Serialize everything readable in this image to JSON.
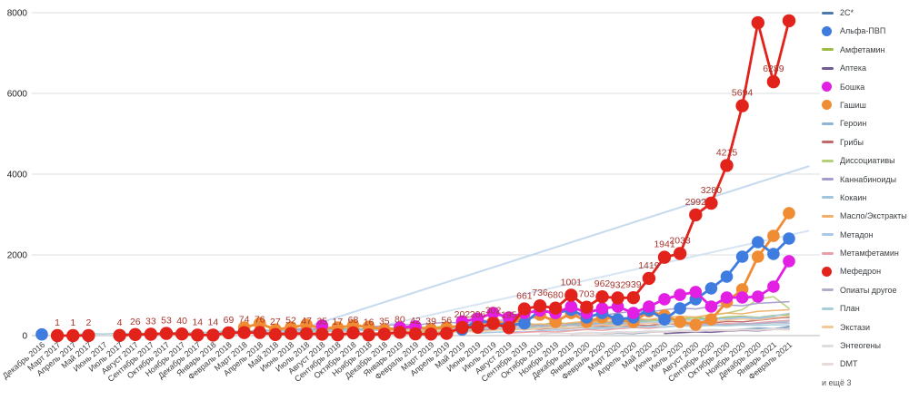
{
  "legend": {
    "more_label": "и ещё 3",
    "position": "right"
  },
  "chart_data": {
    "type": "line",
    "title": "",
    "xlabel": "",
    "ylabel": "",
    "ylim": [
      0,
      8000
    ],
    "yticks": [
      0,
      2000,
      4000,
      6000,
      8000
    ],
    "grid": true,
    "legend_position": "right",
    "label_color": "#a8372e",
    "categories": [
      "Декабрь 2016",
      "Март 2017",
      "Апрель 2017",
      "Май 2017",
      "Июнь 2017",
      "Июль 2017",
      "Август 2017",
      "Сентябрь 2017",
      "Октябрь 2017",
      "Ноябрь 2017",
      "Декабрь 2017",
      "Январь 2018",
      "Февраль 2018",
      "Март 2018",
      "Апрель 2018",
      "Май 2018",
      "Июнь 2018",
      "Июль 2018",
      "Август 2018",
      "Сентябрь 2018",
      "Октябрь 2018",
      "Ноябрь 2018",
      "Декабрь 2018",
      "Январь 2019",
      "Февраль 2019",
      "Март 2019",
      "Апрель 2019",
      "Май 2019",
      "Июнь 2019",
      "Июль 2019",
      "Август 2019",
      "Сентябрь 2019",
      "Октябрь 2019",
      "Ноябрь 2019",
      "Декабрь 2019",
      "Январь 2020",
      "Февраль 2020",
      "Март 2020",
      "Апрель 2020",
      "Май 2020",
      "Июнь 2020",
      "Июль 2020",
      "Август 2020",
      "Сентябрь 2020",
      "Октябрь 2020",
      "Ноябрь 2020",
      "Декабрь 2020",
      "Январь 2021",
      "Февраль 2021"
    ],
    "series": [
      {
        "name": "2C*",
        "color": "#4a7aab",
        "marker": "line",
        "zorder": 1,
        "start": 36,
        "values": [
          40,
          60,
          50,
          80,
          100,
          90,
          120,
          140,
          130,
          160,
          180,
          170,
          220
        ]
      },
      {
        "name": "Альфа-ПВП",
        "color": "#3e7ce0",
        "marker": "circle",
        "zorder": 3,
        "start": 0,
        "values": [
          30,
          null,
          null,
          null,
          null,
          null,
          null,
          null,
          null,
          null,
          null,
          null,
          null,
          null,
          null,
          null,
          null,
          null,
          null,
          null,
          null,
          null,
          null,
          null,
          null,
          null,
          null,
          150,
          380,
          300,
          260,
          300,
          630,
          560,
          640,
          450,
          560,
          400,
          450,
          630,
          400,
          675,
          900,
          1170,
          1460,
          1955,
          2315,
          2022,
          2404
        ]
      },
      {
        "name": "Амфетамин",
        "color": "#9dba45",
        "marker": "line",
        "zorder": 1,
        "start": 10,
        "values": [
          60,
          80,
          100,
          90,
          120,
          140,
          110,
          150,
          130,
          160,
          180,
          150,
          200,
          170,
          220,
          190,
          240,
          210,
          260,
          230,
          280,
          300,
          270,
          320,
          290,
          340,
          360,
          330,
          380,
          400,
          370,
          420,
          440,
          410,
          460,
          480,
          450,
          500,
          520
        ]
      },
      {
        "name": "Аптека",
        "color": "#6e5b92",
        "marker": "line",
        "zorder": 1,
        "start": 40,
        "values": [
          50,
          70,
          90,
          80,
          110,
          130,
          120,
          150,
          160
        ]
      },
      {
        "name": "Бошка",
        "color": "#e31fe3",
        "marker": "circle",
        "zorder": 4,
        "start": 18,
        "values": [
          250,
          null,
          null,
          null,
          null,
          200,
          230,
          null,
          null,
          350,
          420,
          560,
          450,
          560,
          620,
          560,
          720,
          560,
          675,
          720,
          560,
          720,
          900,
          1010,
          1080,
          720,
          944,
          944,
          966,
          1213,
          1843
        ]
      },
      {
        "name": "Гашиш",
        "color": "#ef8c34",
        "marker": "circle",
        "zorder": 2,
        "start": 13,
        "values": [
          200,
          300,
          150,
          200,
          270,
          180,
          200,
          250,
          220,
          150,
          180,
          200,
          160,
          200,
          250,
          300,
          350,
          300,
          400,
          520,
          340,
          560,
          340,
          450,
          400,
          340,
          600,
          500,
          340,
          270,
          400,
          831,
          1146,
          1955,
          2470,
          3034
        ]
      },
      {
        "name": "Героин",
        "color": "#8fb4d4",
        "marker": "line",
        "zorder": 1,
        "start": 8,
        "values": [
          50,
          80,
          60,
          90,
          120,
          100,
          140,
          110,
          130,
          150,
          120,
          160,
          140,
          170,
          150,
          180,
          200,
          170,
          210,
          190,
          230,
          250,
          220,
          270,
          250,
          300,
          280,
          320,
          300,
          350,
          330,
          380,
          360,
          400,
          380,
          430,
          410,
          450,
          420,
          460,
          440
        ]
      },
      {
        "name": "Грибы",
        "color": "#c4686a",
        "marker": "line",
        "zorder": 1,
        "start": 20,
        "values": [
          50,
          70,
          60,
          90,
          80,
          110,
          100,
          130,
          120,
          150,
          140,
          170,
          160,
          190,
          180,
          210,
          230,
          220,
          260,
          250,
          290,
          280,
          320,
          310,
          350,
          340,
          380,
          420,
          460
        ]
      },
      {
        "name": "Диссоциативы",
        "color": "#b5d077",
        "marker": "line",
        "zorder": 1,
        "start": 24,
        "values": [
          80,
          100,
          120,
          110,
          150,
          180,
          160,
          200,
          230,
          210,
          260,
          240,
          290,
          320,
          300,
          360,
          400,
          380,
          450,
          500,
          560,
          640,
          900,
          966,
          675
        ]
      },
      {
        "name": "Каннабиноиды",
        "color": "#a79bce",
        "marker": "line",
        "zorder": 1,
        "start": 16,
        "values": [
          150,
          180,
          160,
          200,
          230,
          210,
          250,
          280,
          260,
          300,
          330,
          310,
          360,
          390,
          370,
          420,
          450,
          430,
          480,
          520,
          500,
          560,
          600,
          580,
          640,
          680,
          660,
          720,
          760,
          740,
          800,
          820,
          840
        ]
      },
      {
        "name": "Кокаин",
        "color": "#9ec4de",
        "marker": "line",
        "zorder": 1,
        "start": 28,
        "values": [
          60,
          80,
          100,
          90,
          120,
          140,
          130,
          160,
          180,
          170,
          200,
          220,
          210,
          240,
          260,
          250,
          280,
          300,
          290,
          320,
          350
        ]
      },
      {
        "name": "Масло/Экстракты",
        "color": "#efb06a",
        "marker": "line",
        "zorder": 1,
        "start": 22,
        "values": [
          90,
          120,
          110,
          150,
          180,
          160,
          200,
          230,
          210,
          260,
          290,
          270,
          320,
          350,
          330,
          380,
          420,
          400,
          450,
          480,
          460,
          520,
          560,
          540,
          600,
          620,
          640
        ]
      },
      {
        "name": "Метадон",
        "color": "#abc9e6",
        "marker": "line",
        "zorder": 1,
        "start": 26,
        "values": [
          80,
          110,
          100,
          140,
          170,
          150,
          190,
          220,
          200,
          250,
          280,
          260,
          310,
          340,
          320,
          370,
          400,
          380,
          430,
          460,
          440,
          490,
          550
        ]
      },
      {
        "name": "Метамфетамин",
        "color": "#e9a0a8",
        "marker": "line",
        "zorder": 1,
        "start": 30,
        "values": [
          60,
          80,
          100,
          90,
          120,
          150,
          130,
          170,
          200,
          180,
          220,
          250,
          230,
          270,
          300,
          280,
          320,
          350,
          380
        ]
      },
      {
        "name": "Мефедрон",
        "color": "#e2231b",
        "marker": "circle",
        "zorder": 5,
        "start": 1,
        "values": [
          1,
          1,
          2,
          null,
          4,
          26,
          33,
          53,
          40,
          14,
          14,
          69,
          74,
          76,
          27,
          52,
          47,
          35,
          17,
          68,
          16,
          35,
          80,
          42,
          39,
          56,
          202,
          206,
          302,
          195,
          661,
          736,
          680,
          1001,
          703,
          962,
          932,
          939,
          1419,
          1941,
          2033,
          2992,
          3280,
          4215,
          5694,
          7750,
          6289,
          7800
        ],
        "labels": [
          "1",
          "1",
          "2",
          "",
          "4",
          "26",
          "33",
          "53",
          "40",
          "14",
          "14",
          "69",
          "74",
          "76",
          "27",
          "52",
          "47",
          "35",
          "17",
          "68",
          "16",
          "35",
          "80",
          "42",
          "39",
          "56",
          "202",
          "206",
          "302",
          "195",
          "661",
          "736",
          "680",
          "1001",
          "703",
          "962",
          "932",
          "939",
          "1419",
          "1941",
          "2033",
          "2992",
          "3280",
          "4215",
          "5694",
          "",
          "6289",
          ""
        ]
      },
      {
        "name": "Опиаты другое",
        "color": "#b3aec8",
        "marker": "line",
        "zorder": 1,
        "start": 12,
        "values": [
          40,
          60,
          50,
          80,
          70,
          100,
          90,
          120,
          110,
          140,
          130,
          160,
          150,
          180,
          170,
          200,
          190,
          220,
          210,
          240,
          230,
          260,
          250,
          280,
          270,
          300,
          290,
          310,
          280,
          300,
          270,
          290,
          260,
          280,
          300,
          320,
          310
        ]
      },
      {
        "name": "План",
        "color": "#a7ced9",
        "marker": "line",
        "zorder": 1,
        "start": 2,
        "values": [
          30,
          50,
          40,
          60,
          50,
          70,
          60,
          80,
          70,
          90,
          80,
          100,
          90,
          110,
          100,
          120,
          110,
          130,
          120,
          140,
          130,
          150,
          140,
          160,
          150,
          170,
          160,
          180,
          170,
          190,
          180,
          200,
          190,
          210,
          200,
          220,
          210,
          230,
          220,
          240,
          230,
          250,
          240,
          260,
          250,
          270,
          260
        ]
      },
      {
        "name": "Экстази",
        "color": "#f4c897",
        "marker": "line",
        "zorder": 1,
        "start": 26,
        "values": [
          70,
          100,
          90,
          130,
          160,
          140,
          180,
          210,
          190,
          230,
          260,
          240,
          280,
          310,
          290,
          330,
          360,
          340,
          380,
          410,
          390,
          440,
          480
        ]
      },
      {
        "name": "Энтеогены",
        "color": "#dddddd",
        "marker": "line",
        "zorder": 1,
        "start": 32,
        "values": [
          40,
          60,
          50,
          80,
          70,
          100,
          90,
          120,
          110,
          140,
          130,
          150,
          140,
          160,
          150,
          170,
          180
        ]
      },
      {
        "name": "DMT",
        "color": "#ead9d9",
        "marker": "line",
        "zorder": 1,
        "start": 34,
        "values": [
          30,
          50,
          40,
          70,
          60,
          90,
          80,
          110,
          100,
          130,
          120,
          140,
          130,
          150,
          140
        ]
      }
    ],
    "trendlines": [
      {
        "x1_index": 15.3,
        "y1_value": 0,
        "x2_index": 49.3,
        "y2_value": 4200,
        "color": "#bcd4ec",
        "width": 2
      },
      {
        "x1_index": 19.0,
        "y1_value": 0,
        "x2_index": 49.3,
        "y2_value": 2600,
        "color": "#cfe0f2",
        "width": 2
      }
    ]
  }
}
